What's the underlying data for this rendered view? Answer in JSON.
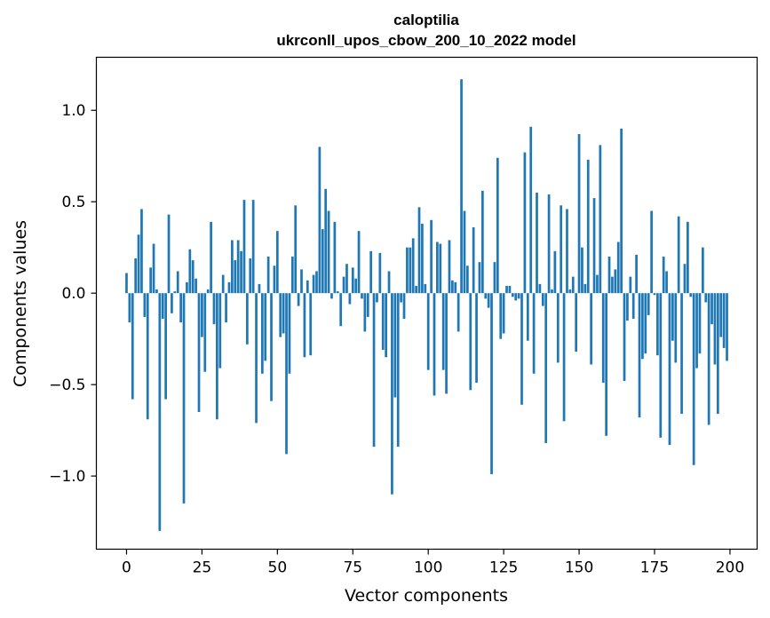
{
  "chart_data": {
    "type": "bar",
    "title_line1": "caloptilia",
    "title_line2": "ukrconll_upos_cbow_200_10_2022 model",
    "xlabel": "Vector components",
    "ylabel": "Components values",
    "xlim": [
      -10,
      209
    ],
    "ylim": [
      -1.4,
      1.29
    ],
    "xticks": [
      0,
      25,
      50,
      75,
      100,
      125,
      150,
      175,
      200
    ],
    "xtick_labels": [
      "0",
      "25",
      "50",
      "75",
      "100",
      "125",
      "150",
      "175",
      "200"
    ],
    "yticks": [
      -1.0,
      -0.5,
      0.0,
      0.5,
      1.0
    ],
    "ytick_labels": [
      "−1.0",
      "−0.5",
      "0.0",
      "0.5",
      "1.0"
    ],
    "bar_color": "#1f77b4",
    "grid": false,
    "values": [
      0.11,
      -0.16,
      -0.58,
      0.19,
      0.32,
      0.46,
      -0.13,
      -0.69,
      0.14,
      0.27,
      0.02,
      -1.3,
      -0.14,
      -0.58,
      0.43,
      -0.11,
      0.01,
      0.12,
      -0.16,
      -1.15,
      0.06,
      0.24,
      0.18,
      0.08,
      -0.65,
      -0.24,
      -0.43,
      0.02,
      0.39,
      -0.17,
      -0.69,
      -0.41,
      0.1,
      -0.16,
      0.06,
      0.29,
      0.18,
      0.29,
      0.23,
      0.51,
      -0.28,
      0.19,
      0.51,
      -0.71,
      0.05,
      -0.44,
      -0.37,
      0.2,
      -0.59,
      0.15,
      0.34,
      -0.24,
      -0.22,
      -0.88,
      -0.44,
      0.2,
      0.48,
      -0.07,
      0.13,
      -0.35,
      0.07,
      -0.34,
      0.1,
      0.12,
      0.8,
      0.35,
      0.57,
      0.45,
      -0.03,
      0.39,
      0.01,
      -0.18,
      0.09,
      0.16,
      -0.06,
      0.14,
      0.08,
      0.34,
      -0.03,
      -0.21,
      -0.13,
      0.23,
      -0.84,
      -0.05,
      0.22,
      -0.31,
      -0.35,
      0.12,
      -1.1,
      -0.57,
      -0.84,
      -0.05,
      -0.14,
      0.25,
      0.25,
      0.3,
      0.04,
      0.47,
      0.38,
      0.05,
      -0.42,
      0.4,
      -0.56,
      0.28,
      0.27,
      -0.42,
      -0.55,
      0.29,
      0.07,
      0.06,
      -0.21,
      1.17,
      0.45,
      0.15,
      -0.53,
      0.36,
      -0.49,
      0.17,
      0.56,
      -0.03,
      -0.08,
      -0.99,
      0.17,
      0.74,
      -0.25,
      -0.22,
      0.04,
      0.04,
      -0.02,
      -0.04,
      -0.03,
      -0.61,
      0.77,
      -0.26,
      0.91,
      -0.44,
      0.55,
      0.05,
      -0.07,
      -0.82,
      0.54,
      0.02,
      0.23,
      -0.38,
      0.48,
      -0.7,
      0.46,
      0.02,
      0.09,
      -0.32,
      0.87,
      0.25,
      0.05,
      0.73,
      -0.39,
      0.52,
      0.1,
      0.81,
      -0.49,
      -0.78,
      0.2,
      0.09,
      0.13,
      0.28,
      0.9,
      -0.48,
      -0.15,
      0.09,
      -0.14,
      0.21,
      -0.68,
      -0.36,
      -0.33,
      -0.12,
      0.45,
      -0.01,
      -0.34,
      -0.79,
      0.2,
      0.12,
      -0.83,
      -0.26,
      -0.38,
      0.42,
      -0.66,
      0.16,
      0.39,
      -0.02,
      -0.94,
      -0.41,
      -0.33,
      0.25,
      -0.05,
      -0.72,
      -0.17,
      -0.39,
      -0.66,
      -0.24,
      -0.3,
      -0.37
    ]
  }
}
